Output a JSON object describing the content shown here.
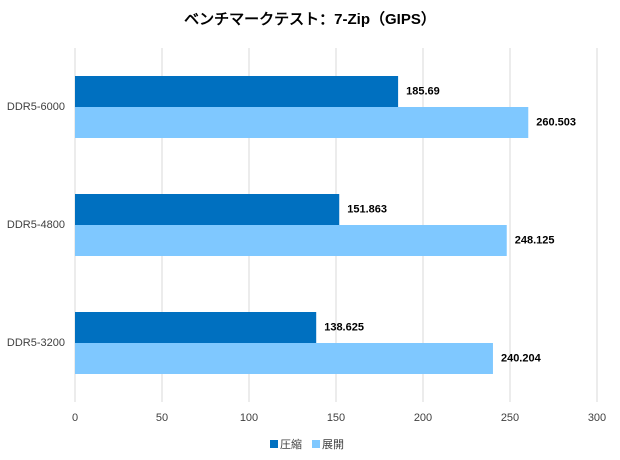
{
  "chart_data": {
    "type": "hbar",
    "title": "ベンチマークテスト：7-Zip（GIPS）",
    "categories": [
      "DDR5-6000",
      "DDR5-4800",
      "DDR5-3200"
    ],
    "series": [
      {
        "name": "圧縮",
        "color": "#0070c0",
        "values": [
          185.69,
          151.863,
          138.625
        ]
      },
      {
        "name": "展開",
        "color": "#7fc8ff",
        "values": [
          260.503,
          248.125,
          240.204
        ]
      }
    ],
    "xlim": [
      0,
      300
    ],
    "xticks": [
      0,
      50,
      100,
      150,
      200,
      250,
      300
    ],
    "grid": true,
    "legend": "bottom"
  }
}
